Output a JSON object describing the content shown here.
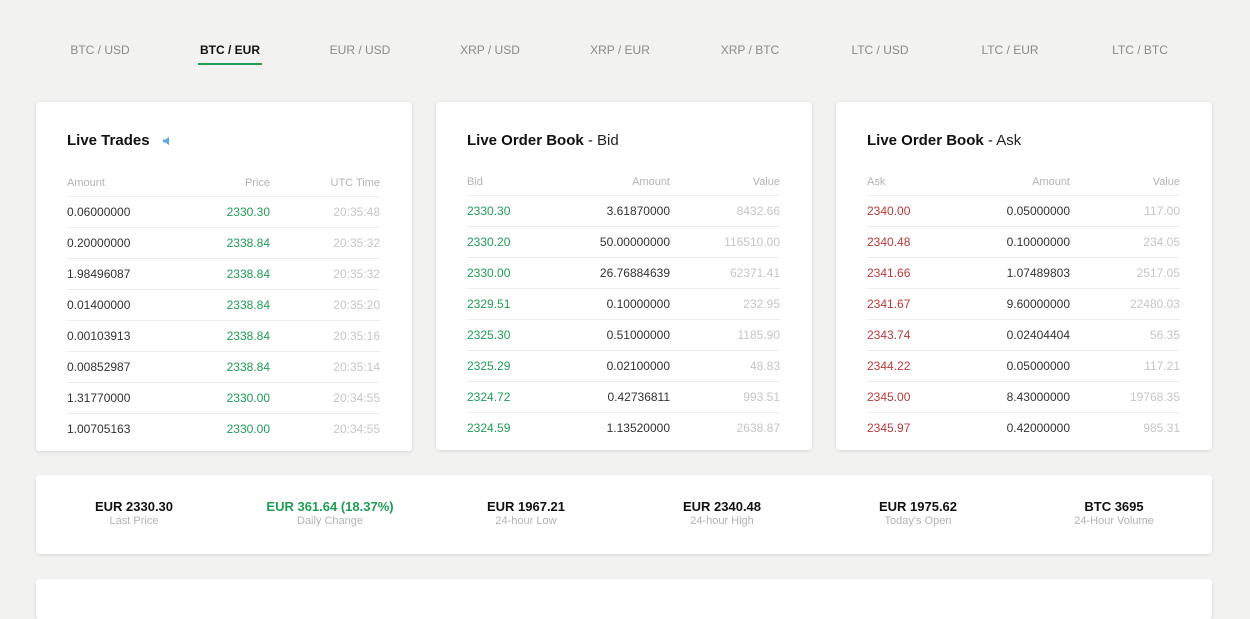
{
  "pairs": [
    "BTC / USD",
    "BTC / EUR",
    "EUR / USD",
    "XRP / USD",
    "XRP / EUR",
    "XRP / BTC",
    "LTC / USD",
    "LTC / EUR",
    "LTC / BTC"
  ],
  "active_pair_index": 1,
  "live_trades": {
    "title": "Live Trades",
    "sound_icon": "speaker-icon",
    "headers": [
      "Amount",
      "Price",
      "UTC Time"
    ],
    "rows": [
      [
        "0.06000000",
        "2330.30",
        "20:35:48"
      ],
      [
        "0.20000000",
        "2338.84",
        "20:35:32"
      ],
      [
        "1.98496087",
        "2338.84",
        "20:35:32"
      ],
      [
        "0.01400000",
        "2338.84",
        "20:35:20"
      ],
      [
        "0.00103913",
        "2338.84",
        "20:35:16"
      ],
      [
        "0.00852987",
        "2338.84",
        "20:35:14"
      ],
      [
        "1.31770000",
        "2330.00",
        "20:34:55"
      ],
      [
        "1.00705163",
        "2330.00",
        "20:34:55"
      ]
    ]
  },
  "bid_book": {
    "title": "Live Order Book",
    "subtitle": " - Bid",
    "headers": [
      "Bid",
      "Amount",
      "Value"
    ],
    "rows": [
      [
        "2330.30",
        "3.61870000",
        "8432.66"
      ],
      [
        "2330.20",
        "50.00000000",
        "116510.00"
      ],
      [
        "2330.00",
        "26.76884639",
        "62371.41"
      ],
      [
        "2329.51",
        "0.10000000",
        "232.95"
      ],
      [
        "2325.30",
        "0.51000000",
        "1185.90"
      ],
      [
        "2325.29",
        "0.02100000",
        "48.83"
      ],
      [
        "2324.72",
        "0.42736811",
        "993.51"
      ],
      [
        "2324.59",
        "1.13520000",
        "2638.87"
      ]
    ]
  },
  "ask_book": {
    "title": "Live Order Book",
    "subtitle": " - Ask",
    "headers": [
      "Ask",
      "Amount",
      "Value"
    ],
    "rows": [
      [
        "2340.00",
        "0.05000000",
        "117.00"
      ],
      [
        "2340.48",
        "0.10000000",
        "234.05"
      ],
      [
        "2341.66",
        "1.07489803",
        "2517.05"
      ],
      [
        "2341.67",
        "9.60000000",
        "22480.03"
      ],
      [
        "2343.74",
        "0.02404404",
        "56.35"
      ],
      [
        "2344.22",
        "0.05000000",
        "117.21"
      ],
      [
        "2345.00",
        "8.43000000",
        "19768.35"
      ],
      [
        "2345.97",
        "0.42000000",
        "985.31"
      ]
    ]
  },
  "stats": [
    {
      "value": "EUR 2330.30",
      "label": "Last Price",
      "up": false
    },
    {
      "value": "EUR 361.64 (18.37%)",
      "label": "Daily Change",
      "up": true
    },
    {
      "value": "EUR 1967.21",
      "label": "24-hour Low",
      "up": false
    },
    {
      "value": "EUR 2340.48",
      "label": "24-hour High",
      "up": false
    },
    {
      "value": "EUR 1975.62",
      "label": "Today's Open",
      "up": false
    },
    {
      "value": "BTC 3695",
      "label": "24-Hour Volume",
      "up": false
    }
  ],
  "colors": {
    "accent": "#1f9d55",
    "ask": "#b83a3a",
    "sound": "#5aa9e6"
  }
}
